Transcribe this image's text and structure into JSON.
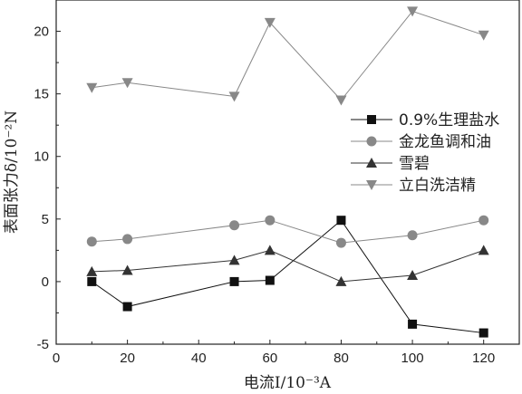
{
  "chart_data": {
    "type": "line",
    "xlabel": "电流I/10⁻³A",
    "ylabel": "表面张力δ/10⁻²N",
    "xlim": [
      0,
      130
    ],
    "ylim": [
      -5,
      22.5
    ],
    "x_ticks": [
      0,
      20,
      40,
      60,
      80,
      100,
      120
    ],
    "y_ticks": [
      -5,
      0,
      5,
      10,
      15,
      20
    ],
    "x_tick_labels": [
      "0",
      "20",
      "40",
      "60",
      "80",
      "100",
      "120"
    ],
    "y_tick_labels": [
      "-5",
      "0",
      "5",
      "10",
      "15",
      "20"
    ],
    "grid": false,
    "legend_position": "right",
    "x": [
      10,
      20,
      50,
      60,
      80,
      100,
      120
    ],
    "series": [
      {
        "name": "0.9%生理盐水",
        "marker": "square",
        "color": "#111111",
        "values": [
          0.0,
          -2.0,
          0.0,
          0.1,
          4.9,
          -3.4,
          -4.1
        ]
      },
      {
        "name": "金龙鱼调和油",
        "marker": "circle",
        "color": "#888888",
        "values": [
          3.2,
          3.4,
          4.5,
          4.9,
          3.1,
          3.7,
          4.9
        ]
      },
      {
        "name": "雪碧",
        "marker": "triangle-up",
        "color": "#333333",
        "values": [
          0.8,
          0.9,
          1.7,
          2.5,
          0.0,
          0.5,
          2.5
        ]
      },
      {
        "name": "立白洗洁精",
        "marker": "triangle-down",
        "color": "#888888",
        "values": [
          15.5,
          15.9,
          14.8,
          20.7,
          14.5,
          21.6,
          19.7
        ]
      }
    ]
  }
}
